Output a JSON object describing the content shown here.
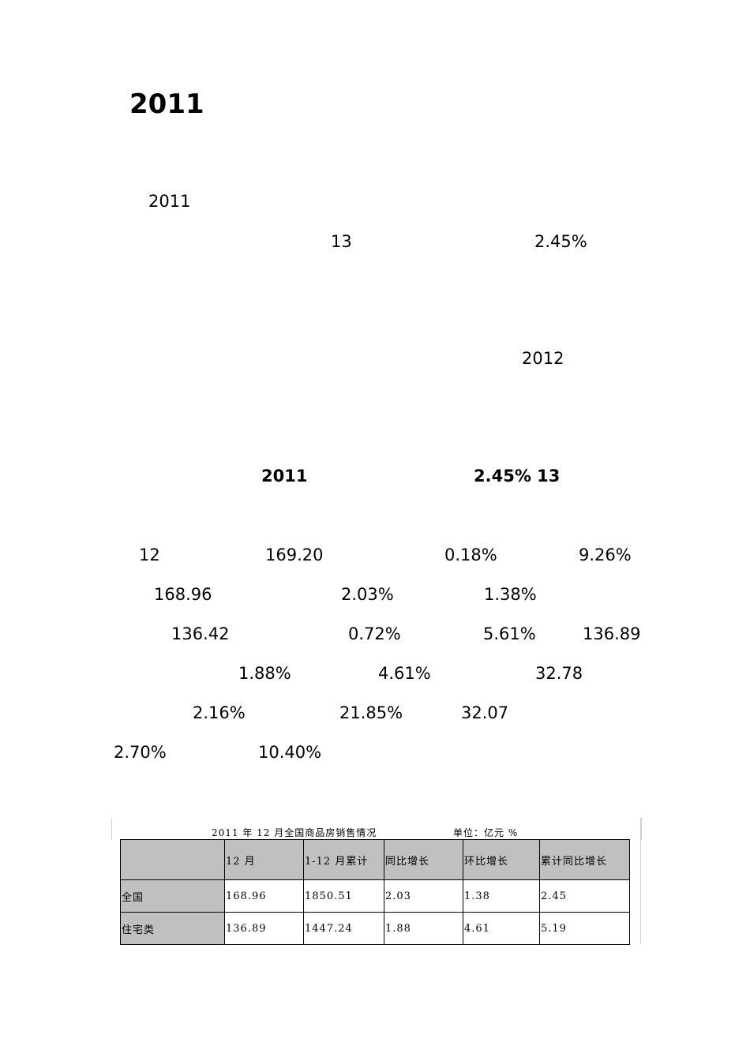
{
  "title": "2011",
  "para1": {
    "year": "2011",
    "n13": "13",
    "pct": "2.45%",
    "year2012": "2012"
  },
  "summary": {
    "year": "2011",
    "pct_n": "2.45% 13"
  },
  "figures": {
    "r1": [
      "12",
      "169.20",
      "0.18%",
      "9.26%"
    ],
    "r2": [
      "168.96",
      "2.03%",
      "1.38%"
    ],
    "r3": [
      "136.42",
      "0.72%",
      "5.61%",
      "136.89"
    ],
    "r4": [
      "1.88%",
      "4.61%",
      "32.78"
    ],
    "r5": [
      "2.16%",
      "21.85%",
      "32.07"
    ],
    "r6": [
      "2.70%",
      "10.40%"
    ]
  },
  "table": {
    "caption_left": "2011 年 12 月全国商品房销售情况",
    "caption_right": "单位：亿元 %",
    "headers": [
      "",
      "12 月",
      "1-12 月累计",
      "同比增长",
      "环比增长",
      "累计同比增长"
    ],
    "rows": [
      [
        "全国",
        "168.96",
        "1850.51",
        "2.03",
        "1.38",
        "2.45"
      ],
      [
        "住宅类",
        "136.89",
        "1447.24",
        "1.88",
        "4.61",
        "5.19"
      ]
    ]
  }
}
